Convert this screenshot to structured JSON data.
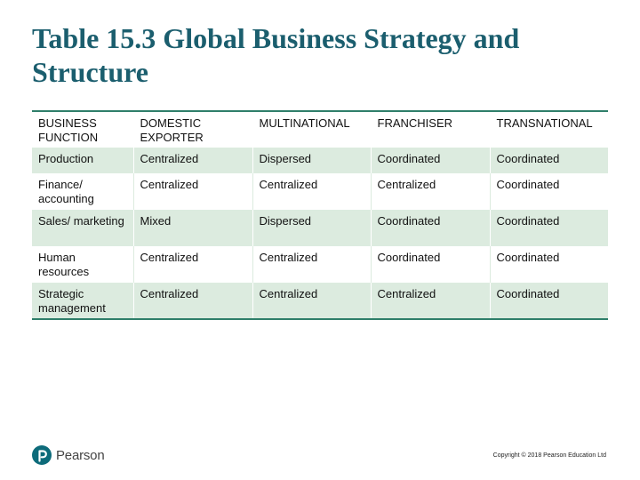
{
  "title": "Table 15.3 Global Business Strategy and Structure",
  "table": {
    "headers": [
      "BUSINESS FUNCTION",
      "DOMESTIC EXPORTER",
      "MULTINATIONAL",
      "FRANCHISER",
      "TRANSNATIONAL"
    ],
    "rows": [
      [
        "Production",
        "Centralized",
        "Dispersed",
        "Coordinated",
        "Coordinated"
      ],
      [
        "Finance/ accounting",
        "Centralized",
        "Centralized",
        "Centralized",
        "Coordinated"
      ],
      [
        "Sales/ marketing",
        "Mixed",
        "Dispersed",
        "Coordinated",
        "Coordinated"
      ],
      [
        "Human resources",
        "Centralized",
        "Centralized",
        "Coordinated",
        "Coordinated"
      ],
      [
        "Strategic management",
        "Centralized",
        "Centralized",
        "Centralized",
        "Coordinated"
      ]
    ]
  },
  "footer": {
    "logo_text": "Pearson",
    "logo_icon": "pearson-logo-icon",
    "copyright": "Copyright © 2018 Pearson Education Ltd"
  },
  "colors": {
    "title": "#1b5e6e",
    "rule": "#2f7f6a",
    "row_band": "#dcebdf",
    "logo": "#0d6b7a"
  }
}
